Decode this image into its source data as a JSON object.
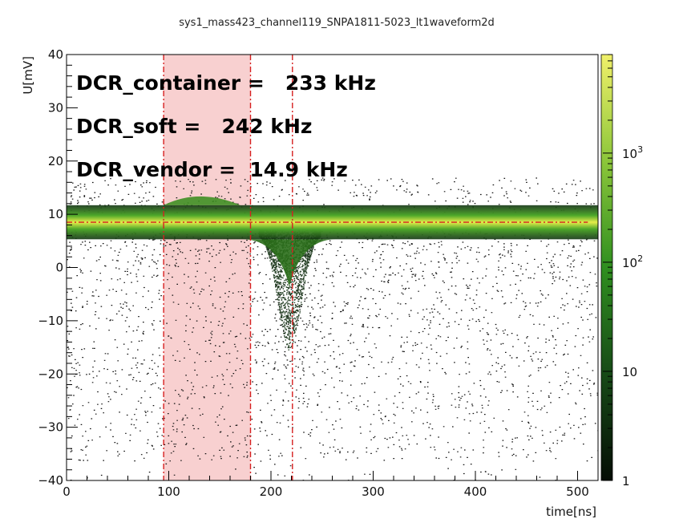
{
  "chart_data": {
    "type": "heatmap",
    "title": "sys1_mass423_channel119_SNPA1811-5023_lt1waveform2d",
    "xlabel": "time[ns]",
    "ylabel": "U[mV]",
    "xlim": [
      0,
      520
    ],
    "ylim": [
      -40,
      40
    ],
    "x_ticks": [
      "0",
      "100",
      "200",
      "300",
      "400",
      "500"
    ],
    "y_ticks": [
      "−40",
      "−30",
      "−20",
      "−10",
      "0",
      "10",
      "20",
      "30",
      "40"
    ],
    "colorbar": {
      "scale": "log",
      "range": [
        1,
        8000
      ],
      "ticks": [
        {
          "value": 1,
          "label": "1"
        },
        {
          "value": 10,
          "label": "10"
        },
        {
          "value": 100,
          "label": "10",
          "exp": "2"
        },
        {
          "value": 1000,
          "label": "10",
          "exp": "3"
        }
      ],
      "color_low": "#0b1a0b",
      "color_mid": "#2f8f1f",
      "color_high": "#f0f06a"
    },
    "baseline_mV": 8.5,
    "dip": {
      "center_ns": 218,
      "depth_mV": -12
    },
    "shaded_region": {
      "x_start": 95,
      "x_end": 180,
      "color": "#f7c8c8"
    },
    "vertical_lines": [
      95,
      180,
      221
    ],
    "horizontal_line": 8.5,
    "line_color": "#d62020",
    "annotations": [
      {
        "text": "DCR_container =   233 kHz"
      },
      {
        "text": "DCR_soft =   242 kHz"
      },
      {
        "text": "DCR_vendor =  14.9 kHz"
      }
    ]
  }
}
